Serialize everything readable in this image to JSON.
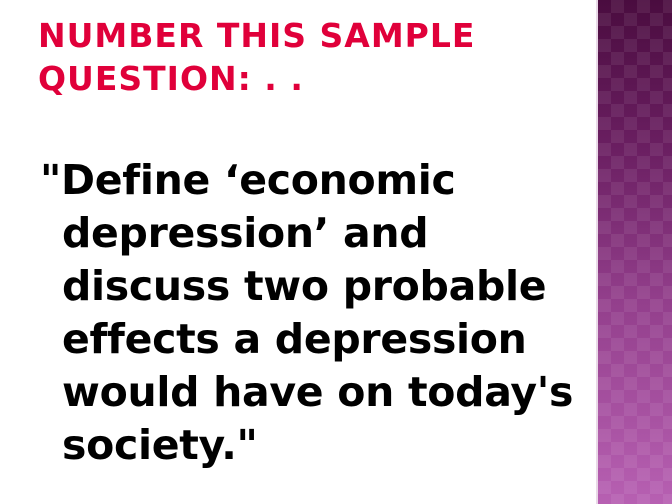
{
  "slide": {
    "title": "Number this sample question: . .",
    "body": "\"Define ‘economic depression’ and discuss two probable effects a depression would have on today's society.\""
  },
  "colors": {
    "title": "#e0003a",
    "body": "#000000",
    "side_band": "#7c2a72"
  }
}
